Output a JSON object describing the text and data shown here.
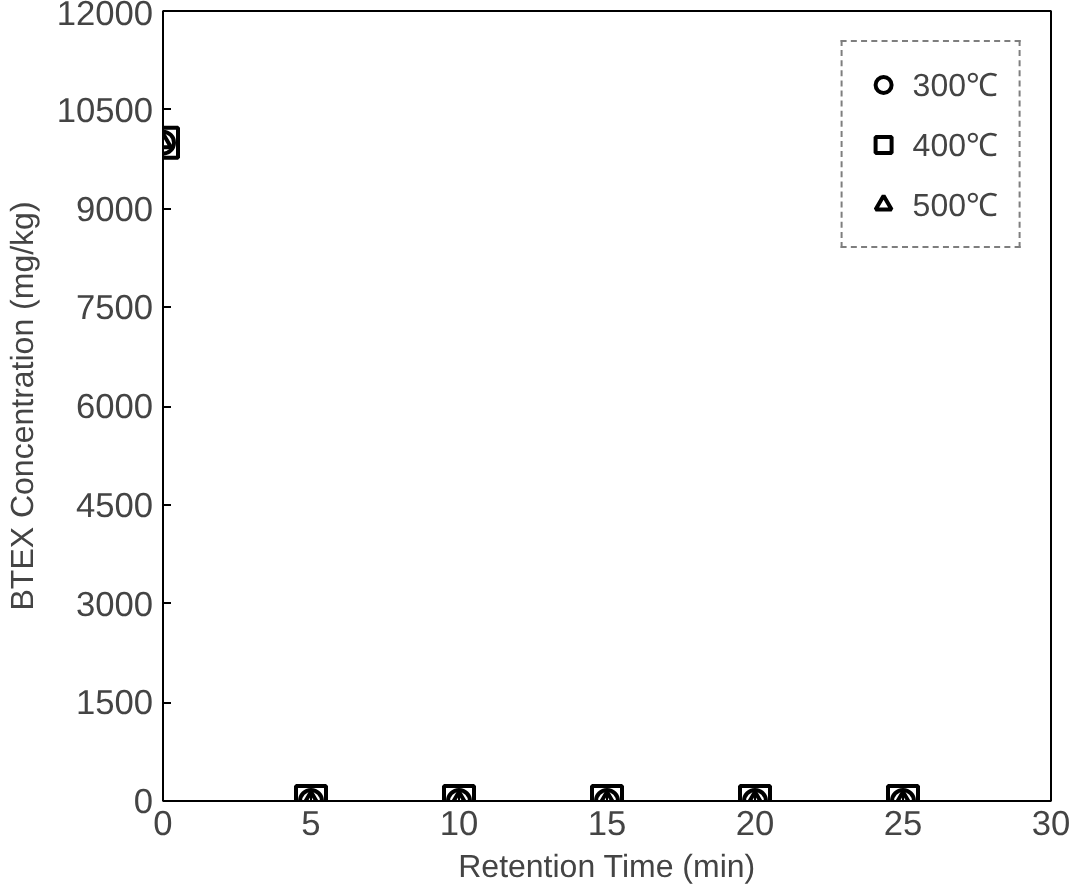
{
  "chart_data": {
    "type": "scatter",
    "xlabel": "Retention Time (min)",
    "ylabel": "BTEX Concentration (mg/kg)",
    "x": [
      0,
      5,
      10,
      15,
      20,
      25
    ],
    "series": [
      {
        "name": "300℃",
        "color": "#000000",
        "marker": "circle",
        "values": [
          10000,
          0,
          0,
          0,
          0,
          0
        ]
      },
      {
        "name": "400℃",
        "color": "#000000",
        "marker": "square",
        "values": [
          10000,
          0,
          0,
          0,
          0,
          0
        ]
      },
      {
        "name": "500℃",
        "color": "#000000",
        "marker": "triangle",
        "values": [
          10000,
          0,
          0,
          0,
          0,
          0
        ]
      }
    ],
    "xlim": [
      0,
      30
    ],
    "xticks": [
      0,
      5,
      10,
      15,
      20,
      25,
      30
    ],
    "ylim": [
      0,
      12000
    ],
    "yticks": [
      0,
      1500,
      3000,
      4500,
      6000,
      7500,
      9000,
      10500,
      12000
    ],
    "grid": false,
    "legend": "top right"
  }
}
